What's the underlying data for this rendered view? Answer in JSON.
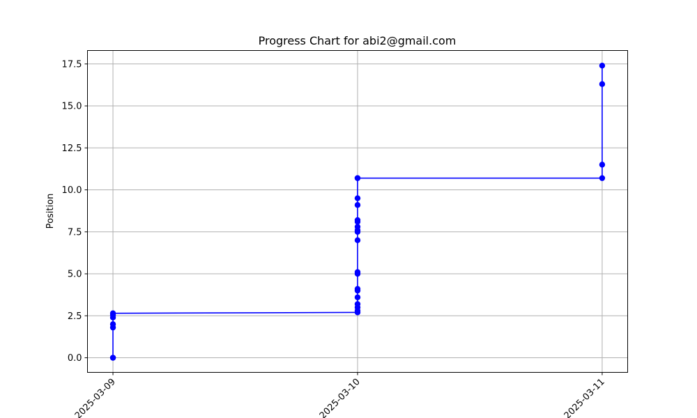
{
  "chart_data": {
    "type": "line",
    "title": "Progress Chart for abi2@gmail.com",
    "xlabel": "",
    "ylabel": "Position",
    "x_type": "date",
    "xlim": [
      "2025-03-08 21:30",
      "2025-03-11 02:30"
    ],
    "ylim": [
      -0.87,
      18.3
    ],
    "x_ticks": [
      "2025-03-09",
      "2025-03-10",
      "2025-03-11"
    ],
    "y_ticks": [
      0.0,
      2.5,
      5.0,
      7.5,
      10.0,
      12.5,
      15.0,
      17.5
    ],
    "y_tick_labels": [
      "0.0",
      "2.5",
      "5.0",
      "7.5",
      "10.0",
      "12.5",
      "15.0",
      "17.5"
    ],
    "grid": true,
    "line_color": "#0000ff",
    "marker": "circle",
    "series": [
      {
        "x": [
          "2025-03-09",
          "2025-03-09",
          "2025-03-09",
          "2025-03-09",
          "2025-03-09",
          "2025-03-09",
          "2025-03-09",
          "2025-03-10",
          "2025-03-10",
          "2025-03-10",
          "2025-03-10",
          "2025-03-10",
          "2025-03-10",
          "2025-03-10",
          "2025-03-10",
          "2025-03-10",
          "2025-03-10",
          "2025-03-10",
          "2025-03-10",
          "2025-03-10",
          "2025-03-10",
          "2025-03-10",
          "2025-03-10",
          "2025-03-10",
          "2025-03-10",
          "2025-03-10",
          "2025-03-11",
          "2025-03-11",
          "2025-03-11",
          "2025-03-11"
        ],
        "y": [
          0.0,
          0.0,
          1.8,
          2.0,
          2.4,
          2.55,
          2.65,
          2.7,
          2.8,
          3.0,
          3.2,
          3.6,
          4.0,
          4.1,
          5.0,
          5.1,
          7.0,
          7.5,
          7.6,
          7.8,
          8.1,
          8.2,
          9.1,
          9.5,
          10.7,
          10.7,
          10.7,
          11.5,
          16.3,
          17.4
        ]
      }
    ]
  }
}
